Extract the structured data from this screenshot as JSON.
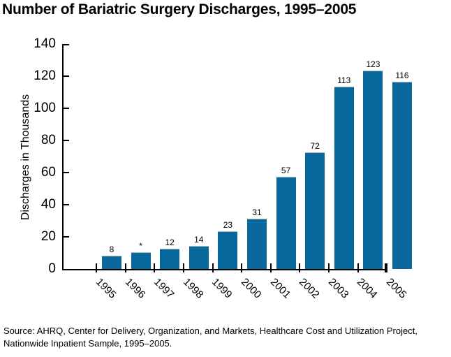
{
  "title": "Number of Bariatric Surgery Discharges, 1995–2005",
  "chart_data": {
    "type": "bar",
    "title": "Number of Bariatric Surgery Discharges, 1995–2005",
    "xlabel": "",
    "ylabel": "Discharges in Thousands",
    "ylim": [
      0,
      140
    ],
    "yticks": [
      0,
      20,
      40,
      60,
      80,
      100,
      120,
      140
    ],
    "grid": "off",
    "legend": "none",
    "categories": [
      "1995",
      "1996",
      "1997",
      "1998",
      "1999",
      "2000",
      "2001",
      "2002",
      "2003",
      "2004",
      "2005"
    ],
    "values": [
      8,
      10,
      12,
      14,
      23,
      31,
      57,
      72,
      113,
      123,
      116
    ],
    "value_labels": [
      "8",
      "*",
      "12",
      "14",
      "23",
      "31",
      "57",
      "72",
      "113",
      "123",
      "116"
    ],
    "bar_color": "#09689b",
    "axis_color": "#000000"
  },
  "source": {
    "line1": "Source:  AHRQ, Center for Delivery, Organization, and Markets, Healthcare Cost and Utilization Project,",
    "line2": "Nationwide Inpatient Sample, 1995–2005."
  }
}
